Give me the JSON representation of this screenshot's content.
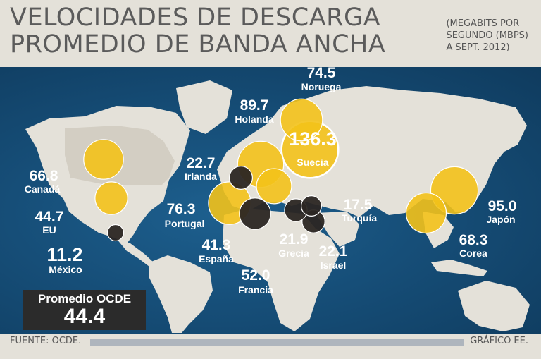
{
  "title": {
    "line1": "VELOCIDADES DE DESCARGA",
    "line2": "PROMEDIO DE BANDA ANCHA"
  },
  "units_note": {
    "line1": "(MEGABITS POR",
    "line2": "SEGUNDO (MBPS)",
    "line3": "A SEPT. 2012)"
  },
  "average": {
    "label": "Promedio OCDE",
    "value": "44.4"
  },
  "footer": {
    "source": "FUENTE: OCDE.",
    "credit": "GRÁFICO EE."
  },
  "colors": {
    "bubble_high": "#f3c21a",
    "bubble_low": "#2b2623",
    "ocean": "#164e78",
    "land": "#e4e1d9"
  },
  "chart_data": {
    "type": "bubble-map",
    "title": "VELOCIDADES DE DESCARGA PROMEDIO DE BANDA ANCHA",
    "units": "(MEGABITS POR SEGUNDO (MBPS) A SEPT. 2012)",
    "reference": {
      "label": "Promedio OCDE",
      "value": 44.4
    },
    "points": [
      {
        "country": "Suecia",
        "value": 136.3,
        "label": "136.3"
      },
      {
        "country": "Japón",
        "value": 95.0,
        "label": "95.0"
      },
      {
        "country": "Holanda",
        "value": 89.7,
        "label": "89.7"
      },
      {
        "country": "Portugal",
        "value": 76.3,
        "label": "76.3"
      },
      {
        "country": "Noruega",
        "value": 74.5,
        "label": "74.5"
      },
      {
        "country": "Corea",
        "value": 68.3,
        "label": "68.3"
      },
      {
        "country": "Canadá",
        "value": 66.8,
        "label": "66.8"
      },
      {
        "country": "Francia",
        "value": 52.0,
        "label": "52.0"
      },
      {
        "country": "EU",
        "value": 44.7,
        "label": "44.7"
      },
      {
        "country": "España",
        "value": 41.3,
        "label": "41.3"
      },
      {
        "country": "Irlanda",
        "value": 22.7,
        "label": "22.7"
      },
      {
        "country": "Israel",
        "value": 22.1,
        "label": "22.1"
      },
      {
        "country": "Grecia",
        "value": 21.9,
        "label": "21.9"
      },
      {
        "country": "Turquía",
        "value": 17.5,
        "label": "17.5"
      },
      {
        "country": "México",
        "value": 11.2,
        "label": "11.2"
      }
    ]
  }
}
